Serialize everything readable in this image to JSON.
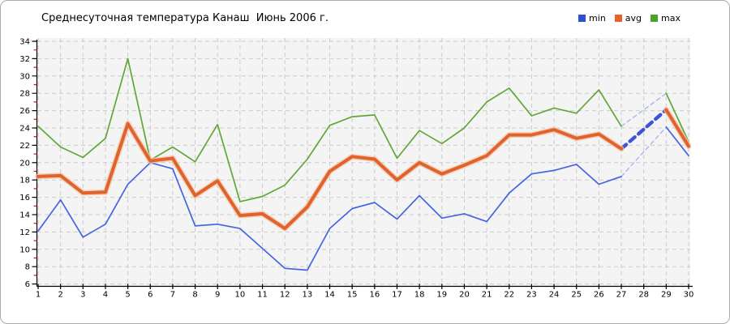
{
  "window": {
    "bg": "#ffffff",
    "border_color": "#ababab"
  },
  "legend": {
    "items": [
      {
        "label": "min",
        "color": "#2f4fd2"
      },
      {
        "label": "avg",
        "color": "#e8622a"
      },
      {
        "label": "max",
        "color": "#4aa427"
      }
    ]
  },
  "chart_data": {
    "type": "line",
    "title": "Среднесуточная температура Канаш  Июнь 2006 г.",
    "xlabel": "",
    "ylabel": "",
    "x": [
      1,
      2,
      3,
      4,
      5,
      6,
      7,
      8,
      9,
      10,
      11,
      12,
      13,
      14,
      15,
      16,
      17,
      18,
      19,
      20,
      21,
      22,
      23,
      24,
      25,
      26,
      27,
      28,
      29,
      30
    ],
    "x_tick_labels": [
      "1",
      "2",
      "3",
      "4",
      "5",
      "6",
      "7",
      "8",
      "9",
      "10",
      "11",
      "12",
      "13",
      "14",
      "15",
      "16",
      "17",
      "18",
      "19",
      "20",
      "21",
      "22",
      "23",
      "24",
      "25",
      "26",
      "27",
      "28",
      "29",
      "30"
    ],
    "ylim": [
      6,
      34
    ],
    "y_major_ticks": [
      6,
      8,
      10,
      12,
      14,
      16,
      18,
      20,
      22,
      24,
      26,
      28,
      30,
      32,
      34
    ],
    "y_minor_ticks": [
      7,
      9,
      11,
      13,
      15,
      17,
      19,
      21,
      23,
      25,
      27,
      29,
      31,
      33
    ],
    "grid": true,
    "legend_position": "top-right",
    "plot_bg": "#f4f4f4",
    "grid_color": "#cbcbcb",
    "axis_color": "#000000",
    "minor_tick_color": "#dd1111",
    "missing_days": [
      28
    ],
    "series": [
      {
        "name": "min",
        "z": 2,
        "color": "#4565e0",
        "width": 1.7,
        "gap": {
          "color": "#a7b6f0",
          "width": 1.4,
          "dash": "5,4"
        },
        "values": [
          12.1,
          15.7,
          11.4,
          12.9,
          17.5,
          20.0,
          19.3,
          12.7,
          12.9,
          12.4,
          10.1,
          7.8,
          7.6,
          12.4,
          14.7,
          15.4,
          13.5,
          16.2,
          13.6,
          14.1,
          13.2,
          16.5,
          18.7,
          19.1,
          19.8,
          17.5,
          18.4,
          null,
          24.1,
          20.8
        ]
      },
      {
        "name": "avg",
        "z": 3,
        "color": "#e0622c",
        "width": 4,
        "halo": "#f3c3a4",
        "gap": {
          "color": "#3c55d8",
          "width": 4.4,
          "dash": "8,6"
        },
        "values": [
          18.4,
          18.5,
          16.5,
          16.6,
          24.5,
          20.2,
          20.5,
          16.2,
          17.9,
          13.9,
          14.1,
          12.4,
          14.9,
          19.0,
          20.7,
          20.4,
          18.0,
          20.0,
          18.7,
          19.7,
          20.8,
          23.2,
          23.2,
          23.8,
          22.8,
          23.3,
          21.6,
          null,
          26.1,
          21.9
        ]
      },
      {
        "name": "max",
        "z": 1,
        "color": "#61a738",
        "width": 1.7,
        "gap": {
          "color": "#a7b6f0",
          "width": 1.4,
          "dash": "5,4"
        },
        "values": [
          24.2,
          21.8,
          20.6,
          22.8,
          32.0,
          20.3,
          21.8,
          20.1,
          24.4,
          15.5,
          16.1,
          17.4,
          20.4,
          24.3,
          25.3,
          25.5,
          20.5,
          23.7,
          22.2,
          24.0,
          27.0,
          28.6,
          25.4,
          26.3,
          25.7,
          28.4,
          24.2,
          null,
          28.0,
          22.4
        ]
      }
    ]
  }
}
